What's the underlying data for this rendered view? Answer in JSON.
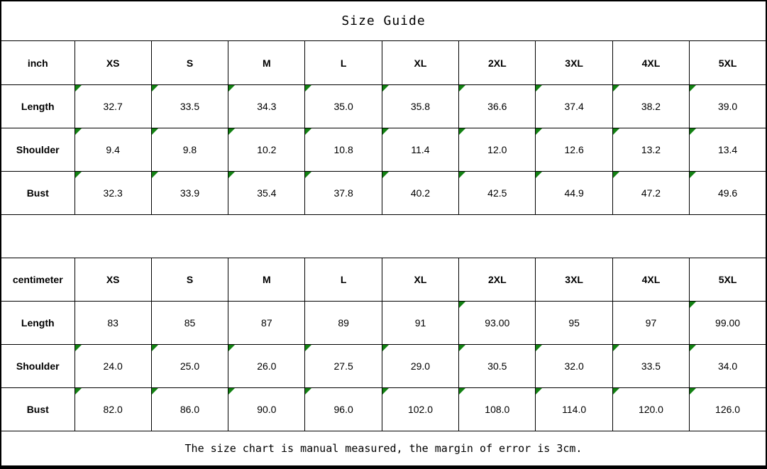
{
  "title": "Size Guide",
  "footer_note": "The size chart is manual measured, the margin of error is 3cm.",
  "colors": {
    "border": "#000000",
    "marker_green": "#128112",
    "background": "#ffffff",
    "text": "#000000"
  },
  "tables": [
    {
      "unit_label": "inch",
      "size_headers": [
        "XS",
        "S",
        "M",
        "L",
        "XL",
        "2XL",
        "3XL",
        "4XL",
        "5XL"
      ],
      "rows": [
        {
          "label": "Length",
          "values": [
            "32.7",
            "33.5",
            "34.3",
            "35.0",
            "35.8",
            "36.6",
            "37.4",
            "38.2",
            "39.0"
          ],
          "markers": [
            true,
            true,
            true,
            true,
            true,
            true,
            true,
            true,
            true
          ]
        },
        {
          "label": "Shoulder",
          "values": [
            "9.4",
            "9.8",
            "10.2",
            "10.8",
            "11.4",
            "12.0",
            "12.6",
            "13.2",
            "13.4"
          ],
          "markers": [
            true,
            true,
            true,
            true,
            true,
            true,
            true,
            true,
            true
          ]
        },
        {
          "label": "Bust",
          "values": [
            "32.3",
            "33.9",
            "35.4",
            "37.8",
            "40.2",
            "42.5",
            "44.9",
            "47.2",
            "49.6"
          ],
          "markers": [
            true,
            true,
            true,
            true,
            true,
            true,
            true,
            true,
            true
          ]
        }
      ]
    },
    {
      "unit_label": "centimeter",
      "size_headers": [
        "XS",
        "S",
        "M",
        "L",
        "XL",
        "2XL",
        "3XL",
        "4XL",
        "5XL"
      ],
      "rows": [
        {
          "label": "Length",
          "values": [
            "83",
            "85",
            "87",
            "89",
            "91",
            "93.00",
            "95",
            "97",
            "99.00"
          ],
          "markers": [
            false,
            false,
            false,
            false,
            false,
            true,
            false,
            false,
            true
          ]
        },
        {
          "label": "Shoulder",
          "values": [
            "24.0",
            "25.0",
            "26.0",
            "27.5",
            "29.0",
            "30.5",
            "32.0",
            "33.5",
            "34.0"
          ],
          "markers": [
            true,
            true,
            true,
            true,
            true,
            true,
            true,
            true,
            true
          ]
        },
        {
          "label": "Bust",
          "values": [
            "82.0",
            "86.0",
            "90.0",
            "96.0",
            "102.0",
            "108.0",
            "114.0",
            "120.0",
            "126.0"
          ],
          "markers": [
            true,
            true,
            true,
            true,
            true,
            true,
            true,
            true,
            true
          ]
        }
      ]
    }
  ]
}
